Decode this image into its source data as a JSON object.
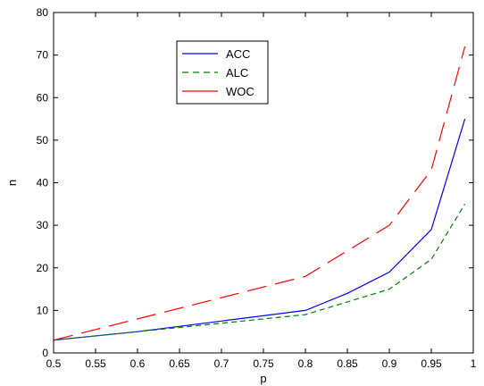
{
  "chart_data": {
    "type": "line",
    "xlabel": "p",
    "ylabel": "n",
    "xlim": [
      0.5,
      1
    ],
    "ylim": [
      0,
      80
    ],
    "x_ticks": [
      0.5,
      0.55,
      0.6,
      0.65,
      0.7,
      0.75,
      0.8,
      0.85,
      0.9,
      0.95,
      1
    ],
    "x_tick_labels": [
      "0.5",
      "0.55",
      "0.6",
      "0.65",
      "0.7",
      "0.75",
      "0.8",
      "0.85",
      "0.9",
      "0.95",
      "1"
    ],
    "y_ticks": [
      0,
      10,
      20,
      30,
      40,
      50,
      60,
      70,
      80
    ],
    "y_tick_labels": [
      "0",
      "10",
      "20",
      "30",
      "40",
      "50",
      "60",
      "70",
      "80"
    ],
    "grid": false,
    "legend_position": "upper-left",
    "series": [
      {
        "name": "ACC",
        "color": "#0000ff",
        "dash": "solid",
        "x": [
          0.5,
          0.6,
          0.7,
          0.8,
          0.85,
          0.9,
          0.95,
          0.99
        ],
        "y": [
          3,
          5,
          7.5,
          10,
          14,
          19,
          29,
          55
        ]
      },
      {
        "name": "ALC",
        "color": "#008000",
        "dash": "dashed",
        "x": [
          0.5,
          0.6,
          0.7,
          0.8,
          0.85,
          0.9,
          0.95,
          0.99
        ],
        "y": [
          3,
          5,
          7,
          9,
          12,
          15,
          22,
          35
        ]
      },
      {
        "name": "WOC",
        "color": "#ff0000",
        "dash": "longdash",
        "x": [
          0.5,
          0.8,
          0.9,
          0.95,
          0.99
        ],
        "y": [
          3,
          18,
          30,
          43,
          72
        ]
      }
    ]
  }
}
